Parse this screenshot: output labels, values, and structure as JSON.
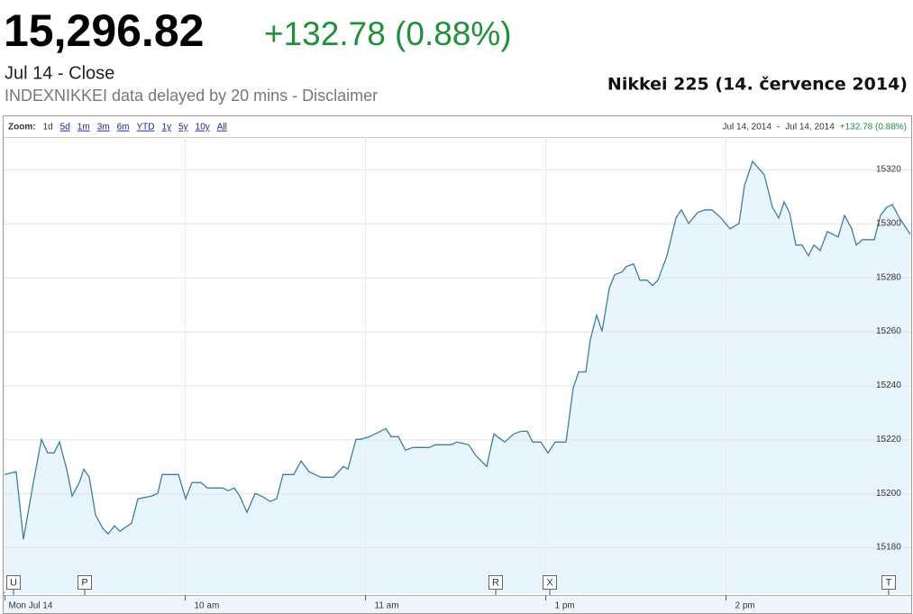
{
  "header": {
    "price": "15,296.82",
    "change": "+132.78 (0.88%)",
    "date": "Jul 14 - Close",
    "source": "INDEXNIKKEI data delayed by 20 mins - Disclaimer"
  },
  "zoom": {
    "label": "Zoom:",
    "options": [
      "1d",
      "5d",
      "1m",
      "3m",
      "6m",
      "YTD",
      "1y",
      "5y",
      "10y",
      "All"
    ],
    "range_start": "Jul 14, 2014",
    "range_sep": "-",
    "range_end": "Jul 14, 2014",
    "range_change": "+132.78 (0.88%)"
  },
  "chart_data": {
    "type": "line",
    "title": "Nikkei 225 (14. července 2014)",
    "x": [
      0,
      3.9,
      6.3,
      9.6,
      12.3,
      14.4,
      16.5,
      18.3,
      20.7,
      22.5,
      24.9,
      26.4,
      28.2,
      30.3,
      32.7,
      34.5,
      36.6,
      38.4,
      42.3,
      44.4,
      48.9,
      51,
      52.5,
      57.9,
      60.3,
      62.4,
      65.4,
      67.5,
      72.6,
      74.4,
      76.5,
      78.3,
      80.7,
      83.4,
      85.5,
      88.5,
      90.6,
      92.7,
      96.3,
      98.7,
      101.4,
      105.3,
      109.5,
      112.8,
      114.3,
      117,
      118.5,
      121.5,
      126.9,
      128.7,
      131.1,
      133.5,
      135.9,
      139.5,
      141.3,
      143.4,
      146.1,
      148.5,
      150.6,
      154.5,
      156.9,
      160.5,
      162.9,
      166.5,
      169.5,
      171.9,
      174,
      175.8,
      178.5,
      180.9,
      183.3,
      186.9,
      189.3,
      191.1,
      193.5,
      195,
      197.1,
      198.9,
      201.3,
      203.1,
      205.5,
      207,
      209.4,
      211.5,
      213.9,
      215.7,
      217.5,
      220.5,
      223.5,
      225.3,
      227.7,
      230.7,
      233.1,
      235.5,
      238.5,
      241.5,
      244.5,
      246.3,
      249,
      252.9,
      255.6,
      257.7,
      259.5,
      261.3,
      263.4,
      265.5,
      267.6,
      269.4,
      271.5,
      273.9,
      277.5,
      279.6,
      282,
      283.5,
      285.6,
      289.5,
      291.6,
      293.7,
      295.5,
      297.9,
      301.5
    ],
    "series": [
      {
        "name": "Nikkei 225",
        "color": "#3d7ea6",
        "fill": "#e9f5fd",
        "values": [
          15207,
          15208,
          15183,
          15204,
          15220,
          15215,
          15215,
          15219,
          15209,
          15199,
          15204,
          15209,
          15206,
          15192,
          15187,
          15185,
          15188,
          15186,
          15189,
          15198,
          15199,
          15200,
          15207,
          15207,
          15198,
          15204,
          15204,
          15202,
          15202,
          15201,
          15202,
          15199,
          15193,
          15200,
          15199,
          15197,
          15198,
          15207,
          15207,
          15212,
          15208,
          15206,
          15206,
          15210,
          15209,
          15220,
          15220,
          15221,
          15224,
          15221,
          15221,
          15216,
          15217,
          15217,
          15217,
          15218,
          15218,
          15218,
          15219,
          15218,
          15214,
          15210,
          15222,
          15219,
          15222,
          15223,
          15223,
          15219,
          15219,
          15215,
          15219,
          15219,
          15239,
          15245,
          15245,
          15257,
          15266,
          15260,
          15276,
          15281,
          15282,
          15284,
          15285,
          15279,
          15279,
          15277,
          15279,
          15288,
          15302,
          15305,
          15300,
          15304,
          15305,
          15305,
          15302,
          15298,
          15300,
          15314,
          15323,
          15318,
          15306,
          15302,
          15308,
          15304,
          15292,
          15292,
          15288,
          15292,
          15290,
          15297,
          15295,
          15303,
          15298,
          15292,
          15294,
          15294,
          15303,
          15306,
          15307,
          15302,
          15296
        ]
      }
    ],
    "xlim": [
      0,
      302
    ],
    "xticks": [
      {
        "value": 0,
        "label": "Mon Jul 14"
      },
      {
        "value": 60,
        "label": "10 am"
      },
      {
        "value": 120,
        "label": "11 am"
      },
      {
        "value": 180,
        "label": "1 pm"
      },
      {
        "value": 240,
        "label": "2 pm"
      }
    ],
    "ylim": [
      15163,
      15332
    ],
    "yticks": [
      15180,
      15200,
      15220,
      15240,
      15260,
      15280,
      15300,
      15320
    ],
    "grid": true,
    "flags": [
      {
        "label": "U",
        "x": 3
      },
      {
        "label": "P",
        "x": 26.7
      },
      {
        "label": "R",
        "x": 163.5
      },
      {
        "label": "X",
        "x": 181.5
      },
      {
        "label": "T",
        "x": 294.3
      }
    ]
  }
}
